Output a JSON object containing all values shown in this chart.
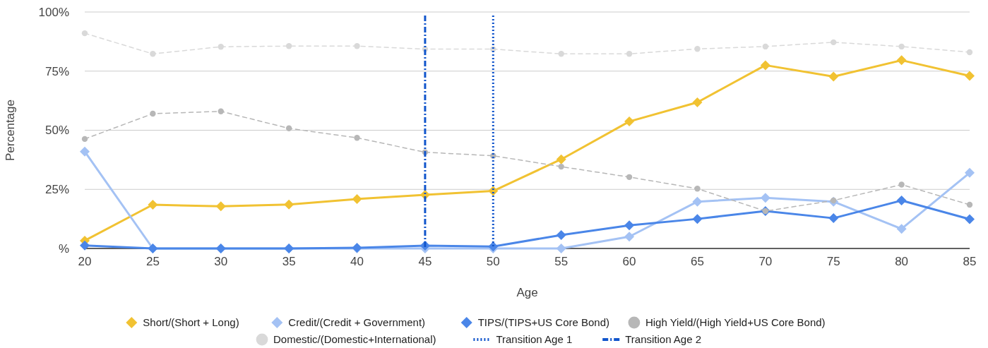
{
  "chart_data": {
    "type": "line",
    "xlabel": "Age",
    "ylabel": "Percentage",
    "x": [
      20,
      25,
      30,
      35,
      40,
      45,
      50,
      55,
      60,
      65,
      70,
      75,
      80,
      85
    ],
    "xlim": [
      20,
      85
    ],
    "xticks": [
      20,
      25,
      30,
      35,
      40,
      45,
      50,
      55,
      60,
      65,
      70,
      75,
      80,
      85
    ],
    "ylim": [
      0,
      100
    ],
    "yticks": [
      {
        "value": 0,
        "label": "%"
      },
      {
        "value": 25,
        "label": "25%"
      },
      {
        "value": 50,
        "label": "50%"
      },
      {
        "value": 75,
        "label": "75%"
      },
      {
        "value": 100,
        "label": "100%"
      }
    ],
    "grid": "y",
    "legend": "bottom",
    "series": [
      {
        "name": "Short/(Short + Long)",
        "color": "#f1c232",
        "marker": "diamond",
        "line_style": "solid",
        "values": [
          3.3,
          18.5,
          17.8,
          18.6,
          20.9,
          22.7,
          24.3,
          37.7,
          53.7,
          61.8,
          77.5,
          72.7,
          79.6,
          73
        ]
      },
      {
        "name": "Credit/(Credit + Government)",
        "color": "#a4c2f4",
        "marker": "diamond",
        "line_style": "solid",
        "values": [
          41,
          0,
          0,
          0,
          0,
          0,
          0,
          0,
          5,
          19.8,
          21.4,
          19.8,
          8.3,
          32
        ]
      },
      {
        "name": "TIPS/(TIPS+US Core Bond)",
        "color": "#4a86e8",
        "marker": "diamond",
        "line_style": "solid",
        "values": [
          1.3,
          0,
          0,
          0,
          0.3,
          1.2,
          0.8,
          5.7,
          9.8,
          12.5,
          15.8,
          12.8,
          20.3,
          12.4
        ]
      },
      {
        "name": "High Yield/(High Yield+US Core Bond)",
        "color": "#b7b7b7",
        "marker": "circle",
        "line_style": "dashed",
        "values": [
          46.3,
          57,
          58,
          50.8,
          46.8,
          40.7,
          39.2,
          34.6,
          30.2,
          25.3,
          15.8,
          20.3,
          27,
          18.5
        ]
      },
      {
        "name": "Domestic/(Domestic+International)",
        "color": "#d9d9d9",
        "marker": "circle",
        "line_style": "dashed",
        "values": [
          91,
          82.3,
          85.3,
          85.6,
          85.6,
          84.3,
          84.3,
          82.3,
          82.3,
          84.4,
          85.4,
          87.2,
          85.4,
          83
        ]
      }
    ],
    "ref_lines": [
      {
        "axis": "x",
        "value": 50,
        "label": "Transition Age 1",
        "color": "#1155cc",
        "line_style": "dotted"
      },
      {
        "axis": "x",
        "value": 45,
        "label": "Transition Age 2",
        "color": "#1155cc",
        "line_style": "dashdot"
      }
    ]
  }
}
